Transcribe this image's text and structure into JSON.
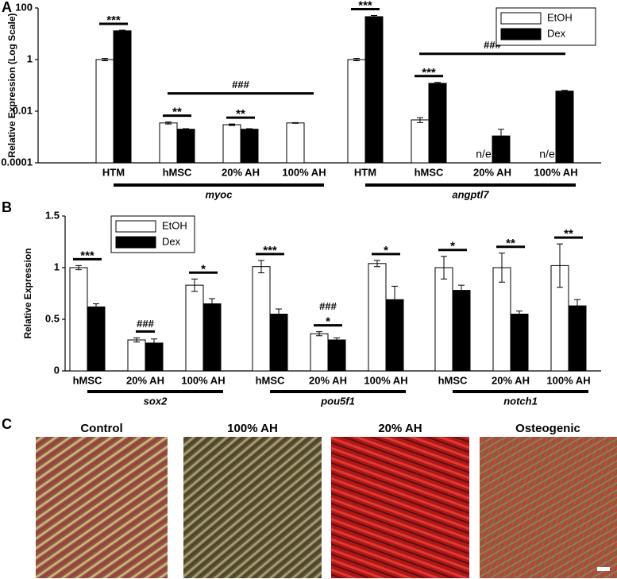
{
  "chart_data": [
    {
      "type": "bar",
      "panel": "A",
      "log_scale": true,
      "y_label": "Relative Expression (Log Scale)",
      "categories": [
        "HTM",
        "hMSC",
        "20% AH",
        "100% AH",
        "HTM",
        "hMSC",
        "20% AH",
        "100% AH"
      ],
      "groups": [
        "myoc",
        "angptl7"
      ],
      "series": [
        {
          "name": "EtOH",
          "color": "#ffffff",
          "values": [
            1,
            0.0035,
            0.003,
            0.0035,
            1,
            0.0046,
            null,
            null
          ],
          "errors": [
            0.1,
            0.0003,
            0.0002,
            0.0001,
            0.1,
            0.001,
            null,
            null
          ],
          "value_labels": [
            null,
            null,
            null,
            null,
            null,
            null,
            "n/e",
            "n/e"
          ]
        },
        {
          "name": "Dex",
          "color": "#000000",
          "values": [
            13,
            0.002,
            0.002,
            null,
            46,
            0.12,
            0.0011,
            0.06
          ],
          "errors": [
            0.8,
            0.0001,
            0.0001,
            null,
            5,
            0.01,
            0.0009,
            0.004
          ]
        }
      ],
      "significance": [
        "***",
        "**",
        "**",
        null,
        "***",
        "***",
        null,
        null
      ],
      "group_hash": [
        "###",
        "###"
      ],
      "ylim": [
        0.0001,
        100
      ],
      "yticks": [
        0.0001,
        0.01,
        1,
        100
      ],
      "legend": "upper right"
    },
    {
      "type": "bar",
      "panel": "B",
      "log_scale": false,
      "y_label": "Relative Expression",
      "categories": [
        "hMSC",
        "20% AH",
        "100% AH",
        "hMSC",
        "20% AH",
        "100% AH",
        "hMSC",
        "20% AH",
        "100% AH"
      ],
      "groups": [
        "sox2",
        "pou5f1",
        "notch1"
      ],
      "series": [
        {
          "name": "EtOH",
          "color": "#ffffff",
          "values": [
            1.0,
            0.3,
            0.83,
            1.01,
            0.36,
            1.04,
            1.0,
            1.0,
            1.02
          ],
          "errors": [
            0.02,
            0.02,
            0.06,
            0.06,
            0.02,
            0.03,
            0.11,
            0.14,
            0.21
          ]
        },
        {
          "name": "Dex",
          "color": "#000000",
          "values": [
            0.62,
            0.27,
            0.65,
            0.55,
            0.3,
            0.69,
            0.78,
            0.55,
            0.63
          ],
          "errors": [
            0.03,
            0.04,
            0.05,
            0.05,
            0.02,
            0.13,
            0.05,
            0.03,
            0.06
          ]
        }
      ],
      "significance": [
        "***",
        null,
        "*",
        "***",
        "*",
        "*",
        "*",
        "**",
        "**"
      ],
      "hash_labels": [
        null,
        "###",
        null,
        null,
        "###",
        null,
        null,
        null,
        null
      ],
      "ylim": [
        0,
        1.5
      ],
      "yticks": [
        0,
        0.5,
        1,
        1.5
      ],
      "legend": "upper left"
    }
  ],
  "micrographs": {
    "panel": "C",
    "titles": [
      "Control",
      "100% AH",
      "20% AH",
      "Osteogenic"
    ]
  }
}
